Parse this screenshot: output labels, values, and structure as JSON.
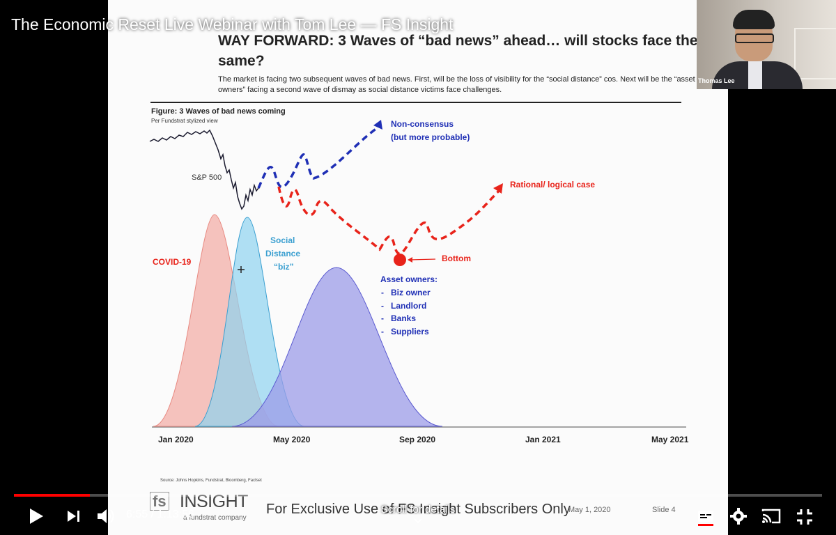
{
  "video": {
    "title": "The Economic Reset Live Webinar with Tom Lee — FS Insight",
    "current_time": "6:55",
    "separator": " / ",
    "duration": "1:13:56",
    "progress": 0.0936,
    "scroll_hint": "Scroll for details",
    "accent_color": "#ff0000"
  },
  "webcam": {
    "name_label": "Thomas Lee"
  },
  "slide": {
    "title": "WAY FORWARD:  3 Waves of “bad news” ahead… will stocks face the same?",
    "description": "The market is facing two subsequent waves of bad news.  First, will be the loss of visibility for the “social distance” cos. Next will be the “asset owners” facing a second wave of dismay as social distance victims face challenges.",
    "figure_title": "Figure: 3 Waves of bad news coming",
    "figure_subtitle": "Per Fundstrat stylized view",
    "source": "Source: Johns Hopkins, Fundstrat, Bloomberg, Factset",
    "footer": {
      "logo_fs": "fs",
      "logo_insight": "INSIGHT",
      "logo_sub": "a fundstrat company",
      "exclusive": "For Exclusive Use of FS Insight Subscribers Only",
      "date": "May 1, 2020",
      "slide_no": "Slide 4"
    }
  },
  "chart_data": {
    "type": "line",
    "title": "Figure: 3 Waves of bad news coming",
    "subtitle": "Per Fundstrat stylized view",
    "x_ticks": [
      "Jan 2020",
      "May 2020",
      "Sep 2020",
      "Jan 2021",
      "May 2021"
    ],
    "labels": {
      "sp500": "S&P 500",
      "non_consensus": "Non-consensus",
      "non_consensus_2": "(but more probable)",
      "rational": "Rational/ logical case",
      "covid": "COVID-19",
      "social_1": "Social",
      "social_2": "Distance",
      "social_3": "“biz”",
      "bottom": "Bottom",
      "asset_owners": "Asset owners:",
      "asset_items": [
        "Biz owner",
        "Landlord",
        "Banks",
        "Suppliers"
      ]
    },
    "series": [
      {
        "name": "S&P 500",
        "color": "#1a1a2e"
      },
      {
        "name": "Non-consensus",
        "color": "#1f2fb5"
      },
      {
        "name": "Rational/ logical case",
        "color": "#e8231a"
      },
      {
        "name": "COVID-19",
        "color": "#f4a9a2"
      },
      {
        "name": "Social Distance “biz”",
        "color": "#8fd3f0"
      },
      {
        "name": "Asset owners",
        "color": "#9c9ce8"
      }
    ]
  }
}
